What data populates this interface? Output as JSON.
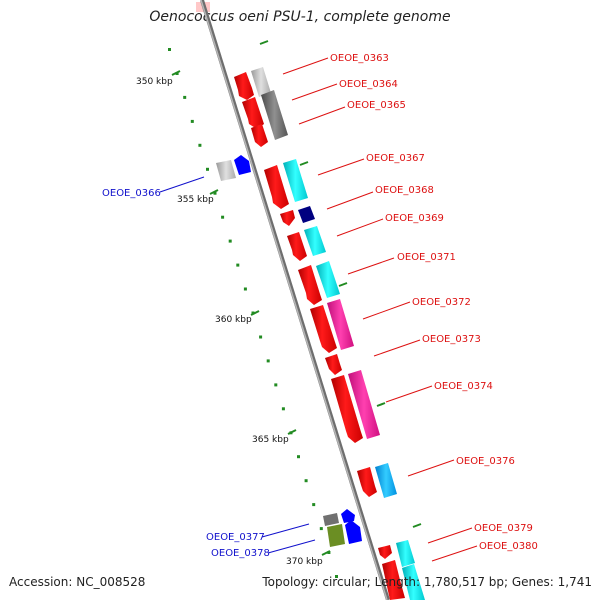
{
  "title": "Oenococcus oeni PSU-1, complete genome",
  "footer": {
    "accession": "Accession: NC_008528",
    "summary": "Topology: circular; Length: 1,780,517 bp; Genes: 1,741"
  },
  "colors": {
    "red": "#ff0000",
    "cyan": "#00e5ee",
    "magenta": "#ff1493",
    "deepskyblue": "#00b2ff",
    "gray": "#c0c0c0",
    "darkgray": "#707070",
    "navy": "#000080",
    "blue": "#0000ff",
    "olive": "#6b8e23",
    "backbone": "#888888",
    "tick": "#228b22",
    "label_red": "#dd1111",
    "label_blue": "#1111cc"
  },
  "ticks": [
    "350 kbp",
    "355 kbp",
    "360 kbp",
    "365 kbp",
    "370 kbp"
  ],
  "genes_right": [
    "OEOE_0363",
    "OEOE_0364",
    "OEOE_0365",
    "OEOE_0367",
    "OEOE_0368",
    "OEOE_0369",
    "OEOE_0371",
    "OEOE_0372",
    "OEOE_0373",
    "OEOE_0374",
    "OEOE_0376",
    "OEOE_0379",
    "OEOE_0380"
  ],
  "genes_left": [
    "OEOE_0366",
    "OEOE_0377",
    "OEOE_0378"
  ]
}
